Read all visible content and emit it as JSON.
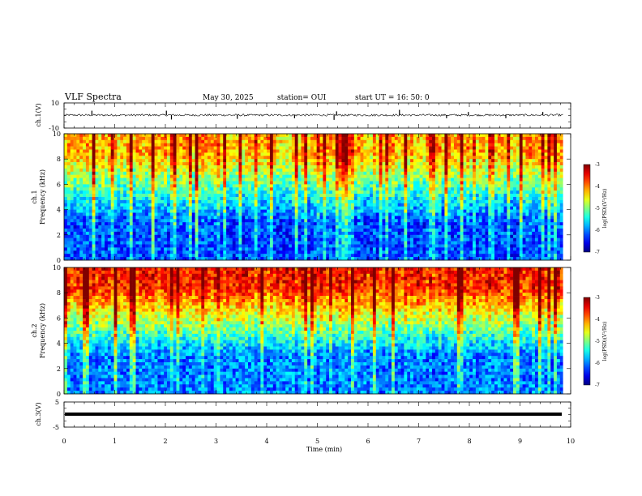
{
  "header": {
    "title": "VLF Spectra",
    "date": "May 30, 2025",
    "station": "station= OUI",
    "start": "start  UT =   16: 50: 0"
  },
  "chart_data": [
    {
      "type": "line",
      "ylabel": "ch.1(V)",
      "ylim": [
        -10,
        10
      ],
      "yticks": [
        "10",
        "-10"
      ],
      "xlim": [
        0,
        10
      ],
      "description_series": "broadband waveform, baseline near 0 V with spikes",
      "baseline": 0,
      "spikes": [
        {
          "x": 0.55,
          "y": 3.5
        },
        {
          "x": 2.02,
          "y": 3.5
        },
        {
          "x": 2.12,
          "y": -3.5
        },
        {
          "x": 3.42,
          "y": -3.0
        },
        {
          "x": 4.55,
          "y": -2.5
        },
        {
          "x": 5.33,
          "y": -3.8
        },
        {
          "x": 5.38,
          "y": 3.0
        },
        {
          "x": 6.62,
          "y": 4.2
        },
        {
          "x": 7.55,
          "y": -2.5
        },
        {
          "x": 7.98,
          "y": 2.5
        },
        {
          "x": 8.72,
          "y": -2.5
        },
        {
          "x": 9.45,
          "y": 2.5
        }
      ]
    },
    {
      "type": "heatmap",
      "ylabel": "ch.1\nFrequency (kHz)",
      "ylabel_lines": [
        "ch.1",
        "Frequency (kHz)"
      ],
      "ylim": [
        0,
        10
      ],
      "yticks": [
        "0",
        "2",
        "4",
        "6",
        "8",
        "10"
      ],
      "xlim": [
        0,
        9.85
      ],
      "colorbar": {
        "label": "log(PSD)(V²/Hz)",
        "range": [
          -7,
          -3
        ],
        "ticks": [
          "-3",
          "-4",
          "-5",
          "-6",
          "-7"
        ]
      },
      "low_band_level": -6.2,
      "high_band_level": -4.2
    },
    {
      "type": "heatmap",
      "ylabel": "ch.2\nFrequency (kHz)",
      "ylabel_lines": [
        "ch.2",
        "Frequency (kHz)"
      ],
      "ylim": [
        0,
        10
      ],
      "yticks": [
        "0",
        "2",
        "4",
        "6",
        "8",
        "10"
      ],
      "xlim": [
        0,
        9.85
      ],
      "colorbar": {
        "label": "log(PSD)(V²/Hz)",
        "range": [
          -7,
          -3
        ],
        "ticks": [
          "-3",
          "-4",
          "-5",
          "-6",
          "-7"
        ]
      },
      "low_band_level": -6.0,
      "high_band_level": -3.6
    },
    {
      "type": "line",
      "ylabel": "ch.3(V)",
      "ylim": [
        -5,
        5
      ],
      "yticks": [
        "5",
        "-5"
      ],
      "xlim": [
        0,
        9.85
      ],
      "baseline": -0.8
    }
  ],
  "xaxis": {
    "label": "Time  (min)",
    "ticks": [
      "0",
      "1",
      "2",
      "3",
      "4",
      "5",
      "6",
      "7",
      "8",
      "9",
      "10"
    ]
  },
  "colors": {
    "trace": "#000000",
    "frame": "#000000"
  }
}
